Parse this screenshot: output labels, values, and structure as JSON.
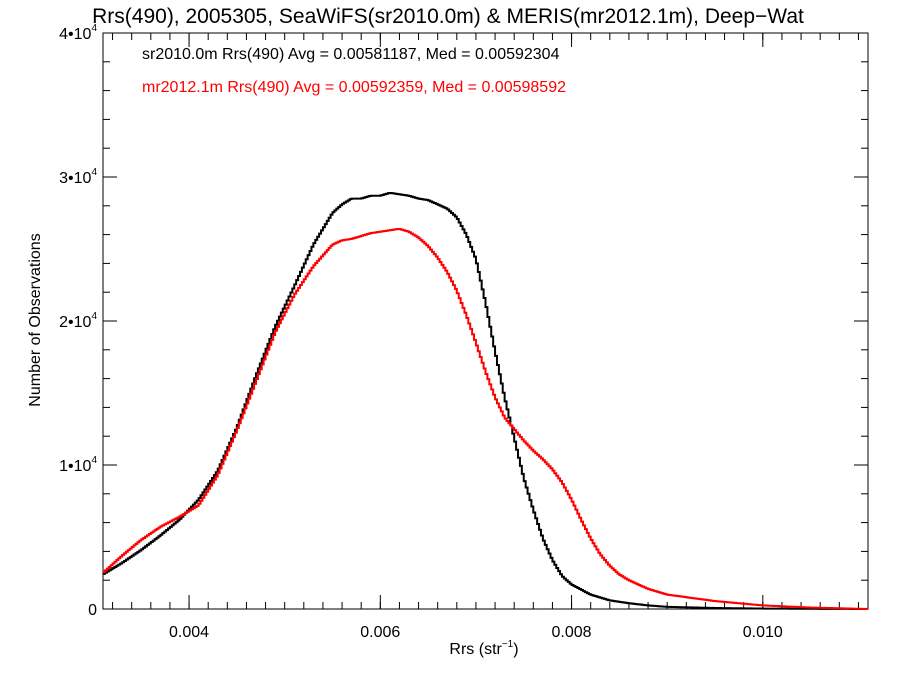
{
  "chart_data": {
    "type": "line",
    "title": "Rrs(490), 2005305, SeaWiFS(sr2010.0m) & MERIS(mr2012.1m), Deep−Wat",
    "xlabel": "Rrs (str",
    "xlabel_sup": "−1",
    "xlabel_suffix": ")",
    "ylabel": "Number of Observations",
    "xlim": [
      0.0031,
      0.0111
    ],
    "ylim": [
      0,
      40000
    ],
    "grid": false,
    "x_ticks": [
      0.004,
      0.006,
      0.008,
      0.01
    ],
    "x_tick_labels": [
      "0.004",
      "0.006",
      "0.008",
      "0.010"
    ],
    "y_ticks": [
      0,
      10000,
      20000,
      30000,
      40000
    ],
    "y_tick_labels": [
      {
        "base": "0",
        "exp": ""
      },
      {
        "base": "1•10",
        "exp": "4"
      },
      {
        "base": "2•10",
        "exp": "4"
      },
      {
        "base": "3•10",
        "exp": "4"
      },
      {
        "base": "4•10",
        "exp": "4"
      }
    ],
    "annotations": [
      "sr2010.0m Rrs(490) Avg = 0.00581187, Med = 0.00592304",
      "mr2012.1m Rrs(490) Avg = 0.00592359, Med = 0.00598592"
    ],
    "series": [
      {
        "color": "#000000",
        "x": [
          0.0031,
          0.0033,
          0.0035,
          0.0037,
          0.0039,
          0.0041,
          0.0043,
          0.0045,
          0.0047,
          0.0049,
          0.0051,
          0.0053,
          0.0055,
          0.0056,
          0.0057,
          0.0058,
          0.0059,
          0.006,
          0.0061,
          0.0062,
          0.0063,
          0.0064,
          0.0065,
          0.0066,
          0.0067,
          0.0068,
          0.0069,
          0.007,
          0.0071,
          0.0072,
          0.0073,
          0.0074,
          0.0075,
          0.0076,
          0.0077,
          0.0078,
          0.0079,
          0.008,
          0.0082,
          0.0084,
          0.0086,
          0.0088,
          0.009,
          0.0095,
          0.01,
          0.0105,
          0.0111
        ],
        "y": [
          2400,
          3200,
          4100,
          5100,
          6200,
          7600,
          9600,
          12600,
          16200,
          19600,
          22400,
          25300,
          27500,
          28100,
          28500,
          28500,
          28700,
          28700,
          28900,
          28800,
          28700,
          28500,
          28400,
          28100,
          27800,
          27200,
          26000,
          24300,
          21300,
          17900,
          14700,
          11900,
          9100,
          6900,
          4900,
          3400,
          2300,
          1700,
          1000,
          600,
          400,
          250,
          150,
          70,
          30,
          15,
          0
        ]
      },
      {
        "color": "#ff0000",
        "x": [
          0.0031,
          0.0033,
          0.0035,
          0.0037,
          0.0039,
          0.0041,
          0.0043,
          0.0045,
          0.0047,
          0.0049,
          0.0051,
          0.0053,
          0.0055,
          0.0056,
          0.0057,
          0.0058,
          0.0059,
          0.006,
          0.0061,
          0.0062,
          0.0063,
          0.0064,
          0.0065,
          0.0066,
          0.0067,
          0.0068,
          0.0069,
          0.007,
          0.0071,
          0.0072,
          0.0073,
          0.0074,
          0.0075,
          0.0076,
          0.0077,
          0.0078,
          0.0079,
          0.008,
          0.0081,
          0.0082,
          0.0083,
          0.0084,
          0.0085,
          0.0086,
          0.0088,
          0.009,
          0.0095,
          0.01,
          0.0105,
          0.0111
        ],
        "y": [
          2500,
          3700,
          4800,
          5700,
          6400,
          7200,
          9300,
          12400,
          15800,
          19200,
          21800,
          23800,
          25300,
          25600,
          25700,
          25900,
          26100,
          26200,
          26300,
          26400,
          26200,
          25800,
          25200,
          24400,
          23400,
          22100,
          20400,
          18500,
          16500,
          14700,
          13300,
          12500,
          11700,
          11000,
          10400,
          9700,
          8800,
          7600,
          6200,
          4900,
          3800,
          3000,
          2400,
          2000,
          1400,
          1000,
          550,
          250,
          100,
          0
        ]
      }
    ]
  }
}
